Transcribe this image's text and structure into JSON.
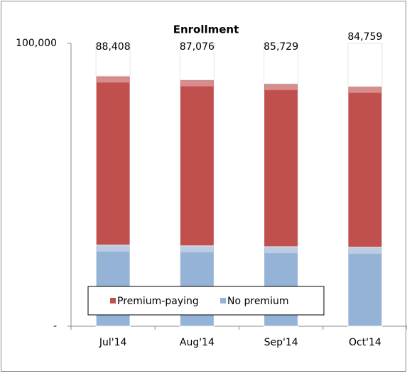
{
  "chart_data": {
    "type": "stacked_bar",
    "title": "Enrollment",
    "categories": [
      "Jul'14",
      "Aug'14",
      "Sep'14",
      "Oct'14"
    ],
    "series": [
      {
        "name": "No premium",
        "color": "#95b3d7",
        "values": [
          28643,
          28400,
          28100,
          27900
        ]
      },
      {
        "name": "Premium-paying",
        "color": "#c0504d",
        "values": [
          59765,
          58676,
          57629,
          56859
        ]
      }
    ],
    "total_labels": [
      "88,408",
      "87,076",
      "85,729",
      "84,759"
    ],
    "legend_order": [
      1,
      0
    ],
    "ylim": [
      0,
      100000
    ],
    "yticks": [
      {
        "value": 0,
        "label": "-"
      },
      {
        "value": 100000,
        "label": "100,000"
      }
    ],
    "legend": "bottom"
  }
}
